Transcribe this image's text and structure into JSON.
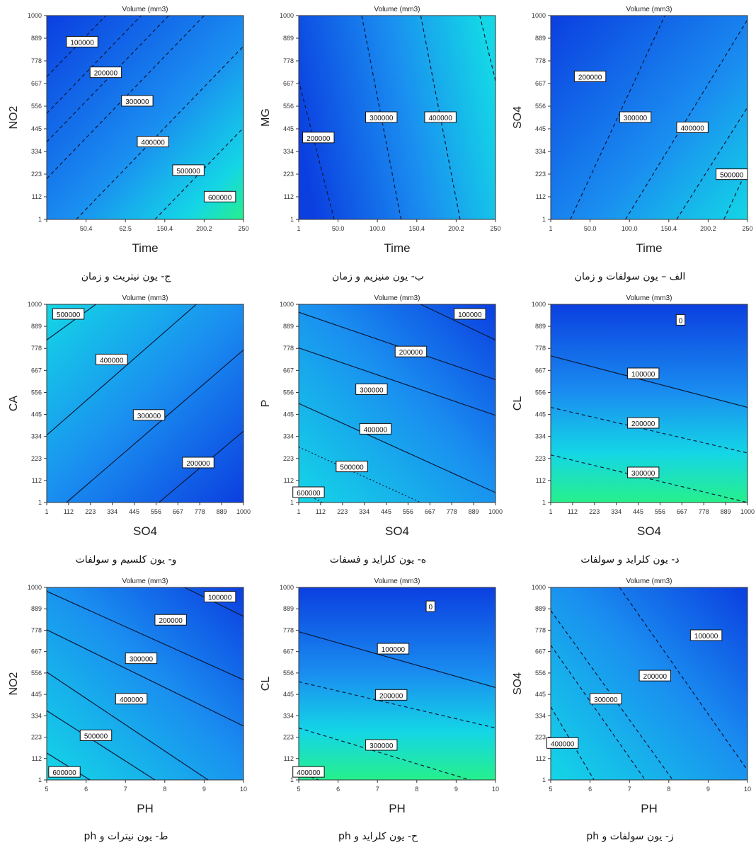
{
  "chart_data": [
    {
      "type": "contour",
      "title": "Volume (mm3)",
      "xlabel": "Time",
      "ylabel": "NO2",
      "x_ticks": [
        "",
        "50.4",
        "62.5",
        "150.4",
        "200.2",
        "250"
      ],
      "y_ticks": [
        "1",
        "112",
        "223",
        "334",
        "445",
        "556",
        "667",
        "778",
        "889",
        "1000"
      ],
      "gradient": "upper-left-dark",
      "contours": [
        {
          "label": "100000",
          "from": [
            0.0,
            0.7
          ],
          "to": [
            0.3,
            1.0
          ],
          "style": "dash",
          "label_at": [
            0.18,
            0.87
          ]
        },
        {
          "label": "200000",
          "from": [
            0.0,
            0.52
          ],
          "to": [
            0.48,
            1.0
          ],
          "style": "dash",
          "label_at": [
            0.3,
            0.72
          ]
        },
        {
          "label": "300000",
          "from": [
            0.0,
            0.38
          ],
          "to": [
            0.62,
            1.0
          ],
          "style": "dash",
          "label_at": [
            0.46,
            0.58
          ]
        },
        {
          "label": "400000",
          "from": [
            0.0,
            0.2
          ],
          "to": [
            0.8,
            1.0
          ],
          "style": "dash",
          "label_at": [
            0.54,
            0.38
          ]
        },
        {
          "label": "500000",
          "from": [
            0.15,
            0.0
          ],
          "to": [
            1.0,
            0.85
          ],
          "style": "dash",
          "label_at": [
            0.72,
            0.24
          ]
        },
        {
          "label": "600000",
          "from": [
            0.55,
            0.0
          ],
          "to": [
            1.0,
            0.45
          ],
          "style": "dash",
          "label_at": [
            0.88,
            0.11
          ]
        }
      ]
    },
    {
      "type": "contour",
      "title": "Volume (mm3)",
      "xlabel": "Time",
      "ylabel": "MG",
      "x_ticks": [
        "1",
        "50.0",
        "100.0",
        "150.4",
        "200.2",
        "250"
      ],
      "y_ticks": [
        "1",
        "112",
        "223",
        "334",
        "445",
        "556",
        "667",
        "778",
        "889",
        "1000"
      ],
      "gradient": "right-light",
      "contours": [
        {
          "label": "200000",
          "from": [
            0.18,
            0.0
          ],
          "to": [
            0.0,
            0.68
          ],
          "style": "dash",
          "label_at": [
            0.1,
            0.4
          ]
        },
        {
          "label": "300000",
          "from": [
            0.52,
            0.0
          ],
          "to": [
            0.32,
            1.0
          ],
          "style": "dash",
          "label_at": [
            0.42,
            0.5
          ]
        },
        {
          "label": "400000",
          "from": [
            0.82,
            0.0
          ],
          "to": [
            0.62,
            1.0
          ],
          "style": "dash",
          "label_at": [
            0.72,
            0.5
          ]
        },
        {
          "label": "",
          "from": [
            1.0,
            0.68
          ],
          "to": [
            0.92,
            1.0
          ],
          "style": "dash",
          "label_at": null
        }
      ]
    },
    {
      "type": "contour",
      "title": "Volume (mm3)",
      "xlabel": "Time",
      "ylabel": "SO4",
      "x_ticks": [
        "1",
        "50.0",
        "100.0",
        "150.4",
        "200.2",
        "250"
      ],
      "y_ticks": [
        "1",
        "112",
        "223",
        "334",
        "445",
        "556",
        "667",
        "778",
        "889",
        "1000"
      ],
      "gradient": "lower-right-light",
      "contours": [
        {
          "label": "200000",
          "from": [
            0.1,
            0.0
          ],
          "to": [
            0.58,
            1.0
          ],
          "style": "dash",
          "label_at": [
            0.2,
            0.7
          ]
        },
        {
          "label": "300000",
          "from": [
            0.38,
            0.0
          ],
          "to": [
            1.0,
            0.98
          ],
          "style": "dash",
          "label_at": [
            0.43,
            0.5
          ]
        },
        {
          "label": "400000",
          "from": [
            0.64,
            0.0
          ],
          "to": [
            1.0,
            0.55
          ],
          "style": "dash",
          "label_at": [
            0.72,
            0.45
          ]
        },
        {
          "label": "500000",
          "from": [
            0.88,
            0.0
          ],
          "to": [
            1.0,
            0.25
          ],
          "style": "dash",
          "label_at": [
            0.92,
            0.22
          ]
        }
      ]
    },
    {
      "type": "contour",
      "title": "Volume (mm3)",
      "xlabel": "SO4",
      "ylabel": "CA",
      "x_ticks": [
        "1",
        "112",
        "223",
        "334",
        "445",
        "556",
        "667",
        "778",
        "889",
        "1000"
      ],
      "y_ticks": [
        "1",
        "112",
        "223",
        "334",
        "445",
        "556",
        "667",
        "778",
        "889",
        "1000"
      ],
      "gradient": "upper-left-light",
      "contours": [
        {
          "label": "500000",
          "from": [
            0.0,
            0.82
          ],
          "to": [
            0.25,
            1.0
          ],
          "style": "solid",
          "label_at": [
            0.11,
            0.95
          ]
        },
        {
          "label": "400000",
          "from": [
            0.0,
            0.34
          ],
          "to": [
            0.76,
            1.0
          ],
          "style": "solid",
          "label_at": [
            0.33,
            0.72
          ]
        },
        {
          "label": "300000",
          "from": [
            0.1,
            0.0
          ],
          "to": [
            1.0,
            0.77
          ],
          "style": "solid",
          "label_at": [
            0.52,
            0.44
          ]
        },
        {
          "label": "200000",
          "from": [
            0.57,
            0.0
          ],
          "to": [
            1.0,
            0.36
          ],
          "style": "solid",
          "label_at": [
            0.77,
            0.2
          ]
        }
      ]
    },
    {
      "type": "contour",
      "title": "Volume (mm3)",
      "xlabel": "SO4",
      "ylabel": "P",
      "x_ticks": [
        "1",
        "112",
        "223",
        "334",
        "445",
        "556",
        "667",
        "778",
        "889",
        "1000"
      ],
      "y_ticks": [
        "1",
        "112",
        "223",
        "334",
        "445",
        "556",
        "667",
        "778",
        "889",
        "1000"
      ],
      "gradient": "lower-left-light",
      "contours": [
        {
          "label": "100000",
          "from": [
            0.62,
            1.0
          ],
          "to": [
            1.0,
            0.82
          ],
          "style": "solid",
          "label_at": [
            0.87,
            0.95
          ]
        },
        {
          "label": "200000",
          "from": [
            0.0,
            0.96
          ],
          "to": [
            1.0,
            0.62
          ],
          "style": "solid",
          "label_at": [
            0.57,
            0.76
          ]
        },
        {
          "label": "300000",
          "from": [
            0.0,
            0.78
          ],
          "to": [
            1.0,
            0.44
          ],
          "style": "solid",
          "label_at": [
            0.37,
            0.57
          ]
        },
        {
          "label": "400000",
          "from": [
            0.0,
            0.5
          ],
          "to": [
            1.0,
            0.05
          ],
          "style": "solid",
          "label_at": [
            0.39,
            0.37
          ]
        },
        {
          "label": "500000",
          "from": [
            0.0,
            0.28
          ],
          "to": [
            0.62,
            0.0
          ],
          "style": "dot",
          "label_at": [
            0.27,
            0.18
          ]
        },
        {
          "label": "600000",
          "from": [
            0.0,
            0.06
          ],
          "to": [
            0.12,
            0.0
          ],
          "style": "dot",
          "label_at": [
            0.05,
            0.05
          ]
        }
      ]
    },
    {
      "type": "contour",
      "title": "Volume (mm3)",
      "xlabel": "SO4",
      "ylabel": "CL",
      "x_ticks": [
        "1",
        "112",
        "223",
        "334",
        "445",
        "556",
        "667",
        "778",
        "889",
        "1000"
      ],
      "y_ticks": [
        "1",
        "112",
        "223",
        "334",
        "445",
        "556",
        "667",
        "778",
        "889",
        "1000"
      ],
      "gradient": "top-dark-bottom-green",
      "contours": [
        {
          "label": "0",
          "from": [
            0.0,
            0.92
          ],
          "to": [
            1.0,
            0.84
          ],
          "style": "none",
          "label_at": [
            0.66,
            0.92
          ]
        },
        {
          "label": "100000",
          "from": [
            0.0,
            0.74
          ],
          "to": [
            1.0,
            0.48
          ],
          "style": "solid",
          "label_at": [
            0.47,
            0.65
          ]
        },
        {
          "label": "200000",
          "from": [
            0.0,
            0.48
          ],
          "to": [
            1.0,
            0.25
          ],
          "style": "dash",
          "label_at": [
            0.47,
            0.4
          ]
        },
        {
          "label": "300000",
          "from": [
            0.0,
            0.24
          ],
          "to": [
            1.0,
            0.0
          ],
          "style": "dash",
          "label_at": [
            0.47,
            0.15
          ]
        }
      ]
    },
    {
      "type": "contour",
      "title": "Volume (mm3)",
      "xlabel": "PH",
      "ylabel": "NO2",
      "x_ticks": [
        "5",
        "6",
        "7",
        "8",
        "9",
        "10"
      ],
      "y_ticks": [
        "1",
        "112",
        "223",
        "334",
        "445",
        "556",
        "667",
        "778",
        "889",
        "1000"
      ],
      "gradient": "lower-left-light",
      "contours": [
        {
          "label": "100000",
          "from": [
            0.7,
            1.0
          ],
          "to": [
            1.0,
            0.85
          ],
          "style": "solid",
          "label_at": [
            0.88,
            0.95
          ]
        },
        {
          "label": "200000",
          "from": [
            0.0,
            0.98
          ],
          "to": [
            1.0,
            0.52
          ],
          "style": "solid",
          "label_at": [
            0.63,
            0.83
          ]
        },
        {
          "label": "300000",
          "from": [
            0.0,
            0.78
          ],
          "to": [
            1.0,
            0.28
          ],
          "style": "solid",
          "label_at": [
            0.48,
            0.63
          ]
        },
        {
          "label": "400000",
          "from": [
            0.0,
            0.56
          ],
          "to": [
            0.82,
            0.0
          ],
          "style": "solid",
          "label_at": [
            0.43,
            0.42
          ]
        },
        {
          "label": "500000",
          "from": [
            0.0,
            0.36
          ],
          "to": [
            0.55,
            0.0
          ],
          "style": "solid",
          "label_at": [
            0.25,
            0.23
          ]
        },
        {
          "label": "600000",
          "from": [
            0.0,
            0.14
          ],
          "to": [
            0.22,
            0.0
          ],
          "style": "solid",
          "label_at": [
            0.09,
            0.04
          ]
        }
      ]
    },
    {
      "type": "contour",
      "title": "Volume (mm3)",
      "xlabel": "PH",
      "ylabel": "CL",
      "x_ticks": [
        "5",
        "6",
        "7",
        "8",
        "9",
        "10"
      ],
      "y_ticks": [
        "1",
        "112",
        "223",
        "334",
        "445",
        "556",
        "667",
        "778",
        "889",
        "1000"
      ],
      "gradient": "top-dark-bottom-green",
      "contours": [
        {
          "label": "0",
          "from": [
            0.0,
            0.92
          ],
          "to": [
            1.0,
            0.84
          ],
          "style": "none",
          "label_at": [
            0.67,
            0.9
          ]
        },
        {
          "label": "100000",
          "from": [
            0.0,
            0.77
          ],
          "to": [
            1.0,
            0.48
          ],
          "style": "solid",
          "label_at": [
            0.48,
            0.68
          ]
        },
        {
          "label": "200000",
          "from": [
            0.0,
            0.51
          ],
          "to": [
            1.0,
            0.27
          ],
          "style": "dash",
          "label_at": [
            0.47,
            0.44
          ]
        },
        {
          "label": "300000",
          "from": [
            0.0,
            0.27
          ],
          "to": [
            0.87,
            0.0
          ],
          "style": "dash",
          "label_at": [
            0.42,
            0.18
          ]
        },
        {
          "label": "400000",
          "from": [
            0.0,
            0.04
          ],
          "to": [
            0.1,
            0.0
          ],
          "style": "dash",
          "label_at": [
            0.05,
            0.04
          ]
        }
      ]
    },
    {
      "type": "contour",
      "title": "Volume (mm3)",
      "xlabel": "PH",
      "ylabel": "SO4",
      "x_ticks": [
        "5",
        "6",
        "7",
        "8",
        "9",
        "10"
      ],
      "y_ticks": [
        "1",
        "112",
        "223",
        "334",
        "445",
        "556",
        "667",
        "778",
        "889",
        "1000"
      ],
      "gradient": "lower-left-light",
      "contours": [
        {
          "label": "100000",
          "from": [
            0.35,
            1.0
          ],
          "to": [
            1.0,
            0.05
          ],
          "style": "dash",
          "label_at": [
            0.79,
            0.75
          ]
        },
        {
          "label": "200000",
          "from": [
            0.0,
            0.88
          ],
          "to": [
            0.62,
            0.0
          ],
          "style": "dash",
          "label_at": [
            0.53,
            0.54
          ]
        },
        {
          "label": "300000",
          "from": [
            0.0,
            0.7
          ],
          "to": [
            0.48,
            0.0
          ],
          "style": "dash",
          "label_at": [
            0.28,
            0.42
          ]
        },
        {
          "label": "400000",
          "from": [
            0.0,
            0.38
          ],
          "to": [
            0.22,
            0.0
          ],
          "style": "dash",
          "label_at": [
            0.06,
            0.19
          ]
        }
      ]
    }
  ],
  "captions": [
    "ج- یون نیتریت و زمان",
    "ب- یون منیزیم و زمان",
    "الف – یون سولفات و زمان",
    "و- یون کلسیم و سولفات",
    "ه- یون کلراید و فسفات",
    "د- یون کلراید و سولفات",
    "ط- یون نیترات و ph",
    "ح- یون کلراید و ph",
    "ز- یون سولفات و ph"
  ],
  "colors": {
    "dark": "#0b3fe0",
    "mid": "#1a8ef0",
    "light": "#14d6e6",
    "green": "#26f08c",
    "contour": "#0a1a3a",
    "label_bg": "#ffffff"
  }
}
